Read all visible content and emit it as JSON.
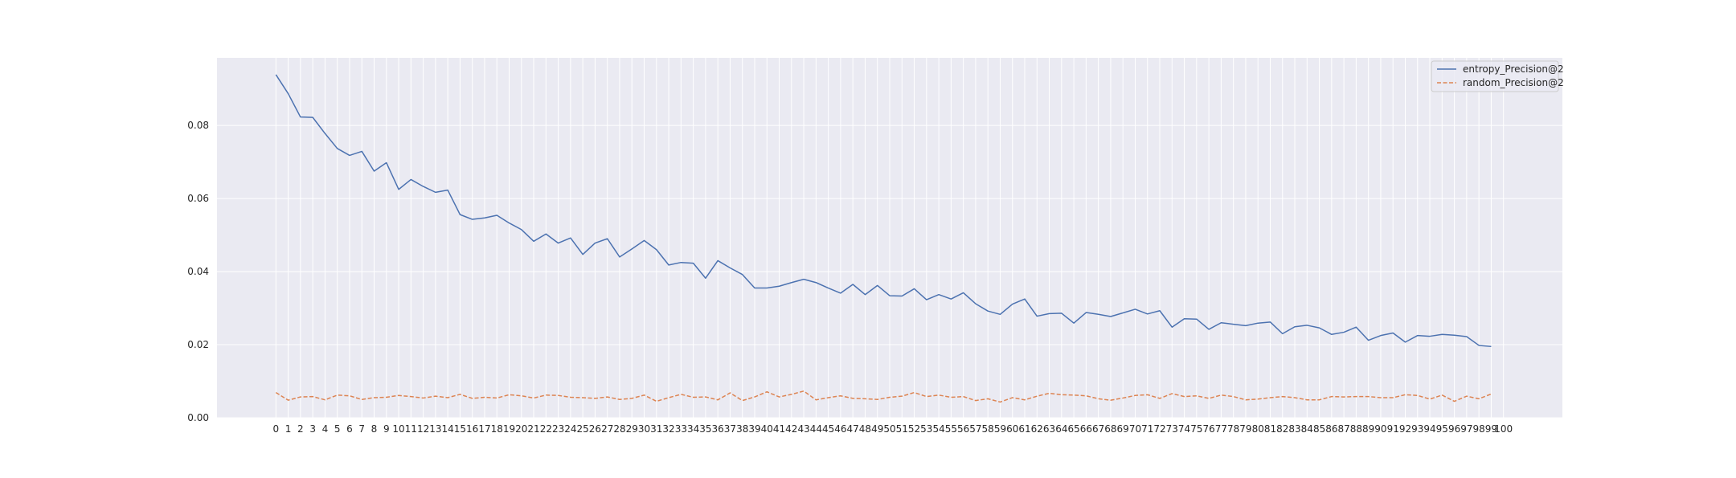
{
  "chart_data": {
    "type": "line",
    "title": "",
    "xlabel": "",
    "ylabel": "",
    "x": [
      0,
      1,
      2,
      3,
      4,
      5,
      6,
      7,
      8,
      9,
      10,
      11,
      12,
      13,
      14,
      15,
      16,
      17,
      18,
      19,
      20,
      21,
      22,
      23,
      24,
      25,
      26,
      27,
      28,
      29,
      30,
      31,
      32,
      33,
      34,
      35,
      36,
      37,
      38,
      39,
      40,
      41,
      42,
      43,
      44,
      45,
      46,
      47,
      48,
      49,
      50,
      51,
      52,
      53,
      54,
      55,
      56,
      57,
      58,
      59,
      60,
      61,
      62,
      63,
      64,
      65,
      66,
      67,
      68,
      69,
      70,
      71,
      72,
      73,
      74,
      75,
      76,
      77,
      78,
      79,
      80,
      81,
      82,
      83,
      84,
      85,
      86,
      87,
      88,
      89,
      90,
      91,
      92,
      93,
      94,
      95,
      96,
      97,
      98,
      99
    ],
    "x_ticks": [
      0,
      1,
      2,
      3,
      4,
      5,
      6,
      7,
      8,
      9,
      10,
      11,
      12,
      13,
      14,
      15,
      16,
      17,
      18,
      19,
      20,
      21,
      22,
      23,
      24,
      25,
      26,
      27,
      28,
      29,
      30,
      31,
      32,
      33,
      34,
      35,
      36,
      37,
      38,
      39,
      40,
      41,
      42,
      43,
      44,
      45,
      46,
      47,
      48,
      49,
      50,
      51,
      52,
      53,
      54,
      55,
      56,
      57,
      58,
      59,
      60,
      61,
      62,
      63,
      64,
      65,
      66,
      67,
      68,
      69,
      70,
      71,
      72,
      73,
      74,
      75,
      76,
      77,
      78,
      79,
      80,
      81,
      82,
      83,
      84,
      85,
      86,
      87,
      88,
      89,
      90,
      91,
      92,
      93,
      94,
      95,
      96,
      97,
      98,
      99,
      100
    ],
    "xlim": [
      -4.8,
      104.8
    ],
    "ylim": [
      0,
      0.0985
    ],
    "y_ticks": [
      "0.00",
      "0.02",
      "0.04",
      "0.06",
      "0.08"
    ],
    "y_tick_values": [
      0,
      0.02,
      0.04,
      0.06,
      0.08
    ],
    "grid": true,
    "legend_position": "top-right",
    "series": [
      {
        "name": "entropy_Precision@2",
        "color": "#4c72b0",
        "dash": "solid",
        "values": [
          0.0939,
          0.0887,
          0.0823,
          0.0822,
          0.0778,
          0.0737,
          0.0718,
          0.0729,
          0.0675,
          0.0698,
          0.0625,
          0.0652,
          0.0633,
          0.0617,
          0.0623,
          0.0556,
          0.0543,
          0.0547,
          0.0554,
          0.0533,
          0.0515,
          0.0483,
          0.0503,
          0.0478,
          0.0492,
          0.0447,
          0.0478,
          0.049,
          0.044,
          0.0462,
          0.0485,
          0.046,
          0.0418,
          0.0425,
          0.0423,
          0.0382,
          0.043,
          0.041,
          0.0392,
          0.0355,
          0.0355,
          0.036,
          0.037,
          0.0379,
          0.037,
          0.0355,
          0.0341,
          0.0365,
          0.0337,
          0.0362,
          0.0334,
          0.0333,
          0.0353,
          0.0323,
          0.0337,
          0.0325,
          0.0342,
          0.0312,
          0.0292,
          0.0283,
          0.0311,
          0.0325,
          0.0278,
          0.0285,
          0.0286,
          0.0259,
          0.0288,
          0.0283,
          0.0277,
          0.0287,
          0.0297,
          0.0284,
          0.0293,
          0.0248,
          0.0271,
          0.027,
          0.0242,
          0.026,
          0.0256,
          0.0252,
          0.0259,
          0.0262,
          0.023,
          0.0249,
          0.0253,
          0.0246,
          0.0228,
          0.0234,
          0.0248,
          0.0212,
          0.0225,
          0.0232,
          0.0207,
          0.0225,
          0.0223,
          0.0228,
          0.0226,
          0.0222,
          0.0198,
          0.0195
        ]
      },
      {
        "name": "random_Precision@2",
        "color": "#dd8452",
        "dash": "dashed",
        "values": [
          0.0069,
          0.0048,
          0.0057,
          0.0058,
          0.0049,
          0.0062,
          0.006,
          0.005,
          0.0055,
          0.0056,
          0.0061,
          0.0058,
          0.0054,
          0.0059,
          0.0055,
          0.0064,
          0.0053,
          0.0056,
          0.0054,
          0.0063,
          0.006,
          0.0054,
          0.0062,
          0.0061,
          0.0056,
          0.0055,
          0.0053,
          0.0057,
          0.005,
          0.0053,
          0.0062,
          0.0045,
          0.0055,
          0.0064,
          0.0056,
          0.0057,
          0.0049,
          0.0068,
          0.0047,
          0.0057,
          0.0071,
          0.0057,
          0.0064,
          0.0073,
          0.0049,
          0.0055,
          0.006,
          0.0053,
          0.0052,
          0.005,
          0.0056,
          0.0059,
          0.0069,
          0.0058,
          0.0062,
          0.0056,
          0.0058,
          0.0047,
          0.0052,
          0.0043,
          0.0055,
          0.0049,
          0.0059,
          0.0067,
          0.0063,
          0.0062,
          0.006,
          0.0052,
          0.0048,
          0.0054,
          0.0061,
          0.0063,
          0.0053,
          0.0066,
          0.0058,
          0.006,
          0.0053,
          0.0062,
          0.0058,
          0.0049,
          0.0051,
          0.0055,
          0.0058,
          0.0055,
          0.0049,
          0.0049,
          0.0058,
          0.0057,
          0.0058,
          0.0058,
          0.0055,
          0.0055,
          0.0063,
          0.0061,
          0.0051,
          0.0062,
          0.0045,
          0.0059,
          0.0052,
          0.0065
        ]
      }
    ]
  }
}
